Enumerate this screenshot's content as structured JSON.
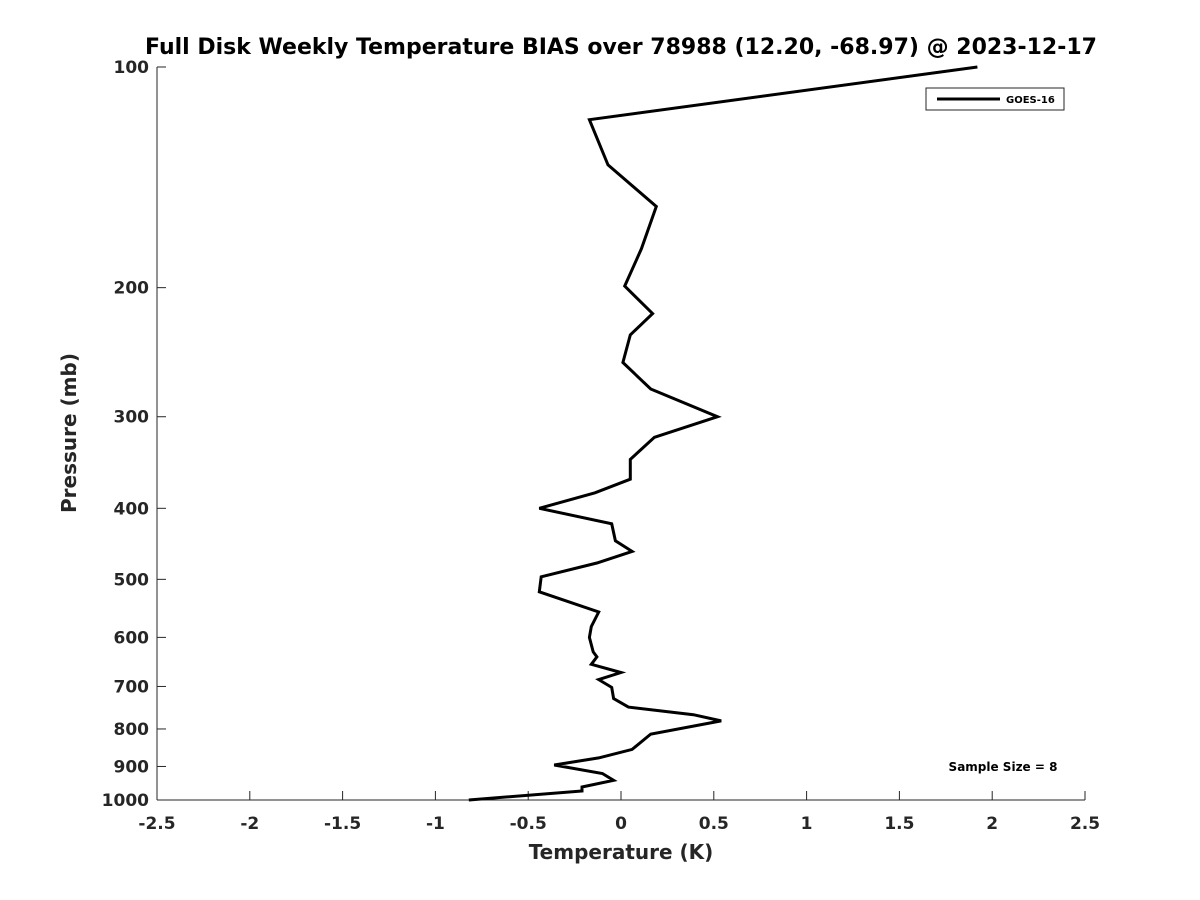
{
  "chart_data": {
    "type": "line",
    "title": "Full Disk Weekly Temperature BIAS over 78988 (12.20, -68.97) @ 2023-12-17",
    "xlabel": "Temperature (K)",
    "ylabel": "Pressure (mb)",
    "xlim": [
      -2.5,
      2.5
    ],
    "ylim": [
      100,
      1000
    ],
    "y_scale": "log",
    "y_reversed": true,
    "grid": false,
    "legend_position": "top-right",
    "x_ticks": [
      -2.5,
      -2,
      -1.5,
      -1,
      -0.5,
      0,
      0.5,
      1,
      1.5,
      2,
      2.5
    ],
    "x_tick_labels": [
      "-2.5",
      "-2",
      "-1.5",
      "-1",
      "-0.5",
      "0",
      "0.5",
      "1",
      "1.5",
      "2",
      "2.5"
    ],
    "y_ticks": [
      100,
      200,
      300,
      400,
      500,
      600,
      700,
      800,
      900,
      1000
    ],
    "y_tick_labels": [
      "100",
      "200",
      "300",
      "400",
      "500",
      "600",
      "700",
      "800",
      "900",
      "1000"
    ],
    "series": [
      {
        "name": "GOES-16",
        "color": "#000000",
        "points": [
          [
            1.92,
            100
          ],
          [
            -0.17,
            118
          ],
          [
            -0.07,
            136
          ],
          [
            0.19,
            155
          ],
          [
            0.11,
            177
          ],
          [
            0.02,
            199
          ],
          [
            0.17,
            217
          ],
          [
            0.05,
            232
          ],
          [
            0.01,
            253
          ],
          [
            0.16,
            275
          ],
          [
            0.52,
            300
          ],
          [
            0.18,
            320
          ],
          [
            0.05,
            343
          ],
          [
            0.05,
            365
          ],
          [
            -0.14,
            381
          ],
          [
            -0.44,
            400
          ],
          [
            -0.05,
            420
          ],
          [
            -0.03,
            443
          ],
          [
            0.06,
            458
          ],
          [
            -0.13,
            475
          ],
          [
            -0.43,
            496
          ],
          [
            -0.44,
            520
          ],
          [
            -0.12,
            554
          ],
          [
            -0.16,
            580
          ],
          [
            -0.17,
            600
          ],
          [
            -0.15,
            628
          ],
          [
            -0.13,
            638
          ],
          [
            -0.16,
            653
          ],
          [
            0.0,
            670
          ],
          [
            -0.12,
            685
          ],
          [
            -0.05,
            702
          ],
          [
            -0.04,
            727
          ],
          [
            0.04,
            747
          ],
          [
            0.39,
            765
          ],
          [
            0.54,
            780
          ],
          [
            0.16,
            813
          ],
          [
            0.06,
            853
          ],
          [
            -0.12,
            876
          ],
          [
            -0.36,
            896
          ],
          [
            -0.1,
            920
          ],
          [
            -0.04,
            940
          ],
          [
            -0.21,
            960
          ],
          [
            -0.21,
            972
          ],
          [
            -0.82,
            1000
          ]
        ]
      }
    ],
    "annotations": [
      {
        "text": "Sample Size = 8",
        "position": "bottom-right"
      }
    ]
  }
}
